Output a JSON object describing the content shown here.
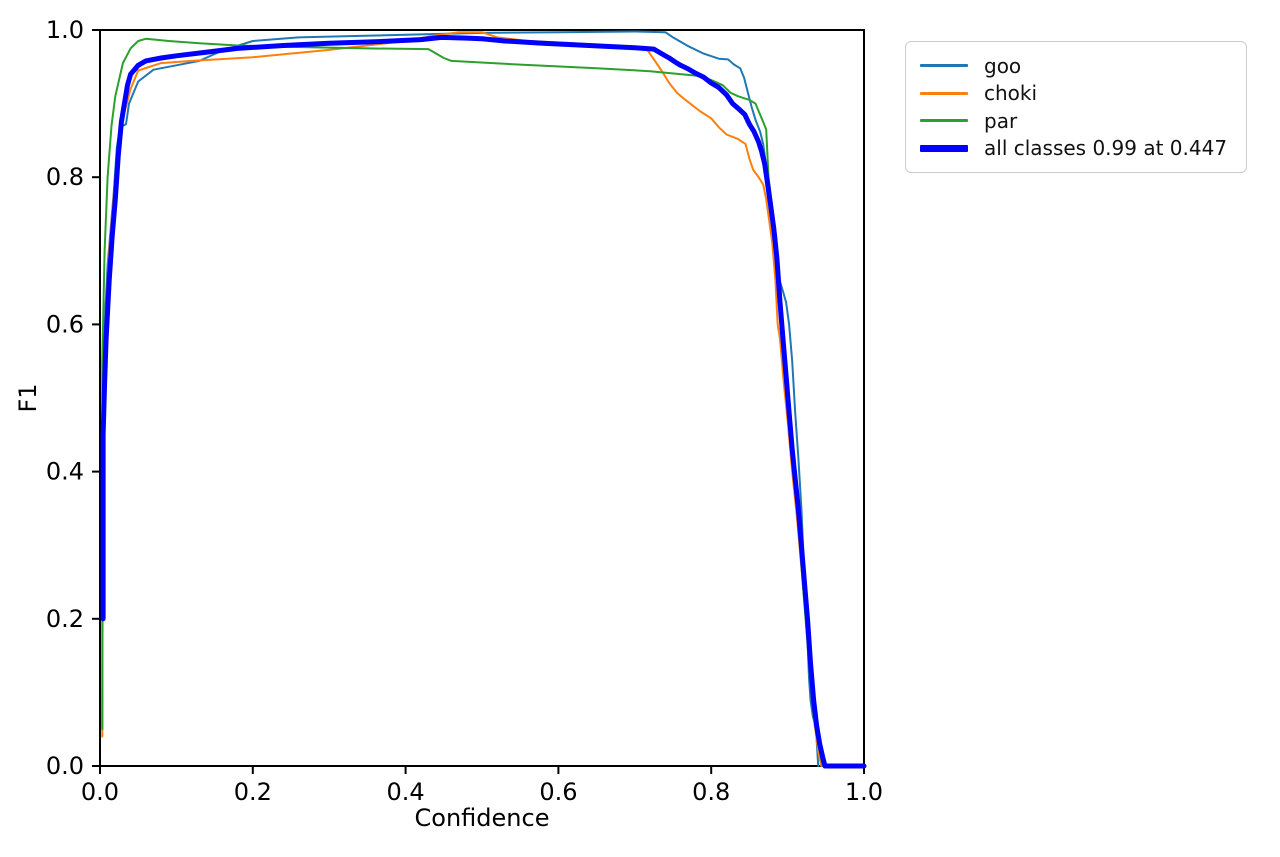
{
  "chart_data": {
    "type": "line",
    "title": "",
    "xlabel": "Confidence",
    "ylabel": "F1",
    "xlim": [
      0.0,
      1.0
    ],
    "ylim": [
      0.0,
      1.0
    ],
    "x_ticks": [
      "0.0",
      "0.2",
      "0.4",
      "0.6",
      "0.8",
      "1.0"
    ],
    "y_ticks": [
      "0.0",
      "0.2",
      "0.4",
      "0.6",
      "0.8",
      "1.0"
    ],
    "grid": false,
    "legend_position": "outside-upper-right",
    "best_f1": "0.99",
    "best_confidence": "0.447",
    "series": [
      {
        "name": "goo",
        "color": "#1f77b4",
        "width": 2,
        "points": [
          [
            0.003,
            0.05
          ],
          [
            0.004,
            0.52
          ],
          [
            0.006,
            0.6
          ],
          [
            0.01,
            0.68
          ],
          [
            0.014,
            0.73
          ],
          [
            0.018,
            0.78
          ],
          [
            0.022,
            0.84
          ],
          [
            0.026,
            0.868
          ],
          [
            0.034,
            0.872
          ],
          [
            0.038,
            0.9
          ],
          [
            0.05,
            0.93
          ],
          [
            0.07,
            0.946
          ],
          [
            0.1,
            0.952
          ],
          [
            0.13,
            0.958
          ],
          [
            0.16,
            0.972
          ],
          [
            0.2,
            0.985
          ],
          [
            0.26,
            0.99
          ],
          [
            0.34,
            0.992
          ],
          [
            0.42,
            0.994
          ],
          [
            0.5,
            0.996
          ],
          [
            0.6,
            0.997
          ],
          [
            0.7,
            0.998
          ],
          [
            0.74,
            0.997
          ],
          [
            0.75,
            0.99
          ],
          [
            0.76,
            0.984
          ],
          [
            0.77,
            0.978
          ],
          [
            0.79,
            0.968
          ],
          [
            0.81,
            0.961
          ],
          [
            0.822,
            0.96
          ],
          [
            0.83,
            0.953
          ],
          [
            0.838,
            0.948
          ],
          [
            0.843,
            0.935
          ],
          [
            0.848,
            0.915
          ],
          [
            0.853,
            0.895
          ],
          [
            0.858,
            0.878
          ],
          [
            0.864,
            0.862
          ],
          [
            0.868,
            0.845
          ],
          [
            0.872,
            0.815
          ],
          [
            0.876,
            0.78
          ],
          [
            0.88,
            0.74
          ],
          [
            0.884,
            0.7
          ],
          [
            0.888,
            0.665
          ],
          [
            0.893,
            0.648
          ],
          [
            0.898,
            0.63
          ],
          [
            0.902,
            0.6
          ],
          [
            0.906,
            0.55
          ],
          [
            0.91,
            0.48
          ],
          [
            0.914,
            0.42
          ],
          [
            0.918,
            0.35
          ],
          [
            0.921,
            0.28
          ],
          [
            0.924,
            0.22
          ],
          [
            0.926,
            0.17
          ],
          [
            0.928,
            0.12
          ],
          [
            0.93,
            0.09
          ],
          [
            0.933,
            0.068
          ],
          [
            0.937,
            0.052
          ],
          [
            0.94,
            0.0
          ]
        ]
      },
      {
        "name": "choki",
        "color": "#ff7f0e",
        "width": 2,
        "points": [
          [
            0.003,
            0.04
          ],
          [
            0.004,
            0.5
          ],
          [
            0.008,
            0.62
          ],
          [
            0.012,
            0.7
          ],
          [
            0.02,
            0.8
          ],
          [
            0.03,
            0.88
          ],
          [
            0.04,
            0.92
          ],
          [
            0.05,
            0.945
          ],
          [
            0.08,
            0.955
          ],
          [
            0.12,
            0.958
          ],
          [
            0.2,
            0.963
          ],
          [
            0.3,
            0.973
          ],
          [
            0.4,
            0.985
          ],
          [
            0.44,
            0.993
          ],
          [
            0.47,
            0.997
          ],
          [
            0.5,
            0.997
          ],
          [
            0.52,
            0.99
          ],
          [
            0.56,
            0.985
          ],
          [
            0.62,
            0.982
          ],
          [
            0.68,
            0.978
          ],
          [
            0.715,
            0.975
          ],
          [
            0.725,
            0.96
          ],
          [
            0.735,
            0.945
          ],
          [
            0.745,
            0.928
          ],
          [
            0.755,
            0.915
          ],
          [
            0.765,
            0.906
          ],
          [
            0.775,
            0.898
          ],
          [
            0.785,
            0.89
          ],
          [
            0.8,
            0.88
          ],
          [
            0.81,
            0.868
          ],
          [
            0.82,
            0.858
          ],
          [
            0.835,
            0.852
          ],
          [
            0.845,
            0.845
          ],
          [
            0.85,
            0.825
          ],
          [
            0.855,
            0.81
          ],
          [
            0.862,
            0.8
          ],
          [
            0.868,
            0.79
          ],
          [
            0.872,
            0.77
          ],
          [
            0.876,
            0.74
          ],
          [
            0.88,
            0.71
          ],
          [
            0.884,
            0.66
          ],
          [
            0.887,
            0.6
          ],
          [
            0.89,
            0.58
          ],
          [
            0.895,
            0.52
          ],
          [
            0.9,
            0.47
          ],
          [
            0.906,
            0.4
          ],
          [
            0.912,
            0.34
          ],
          [
            0.918,
            0.27
          ],
          [
            0.924,
            0.2
          ],
          [
            0.93,
            0.12
          ],
          [
            0.935,
            0.06
          ],
          [
            0.94,
            0.02
          ],
          [
            0.944,
            0.0
          ]
        ]
      },
      {
        "name": "par",
        "color": "#2ca02c",
        "width": 2,
        "points": [
          [
            0.003,
            0.05
          ],
          [
            0.003,
            0.55
          ],
          [
            0.006,
            0.7
          ],
          [
            0.01,
            0.8
          ],
          [
            0.015,
            0.87
          ],
          [
            0.02,
            0.91
          ],
          [
            0.03,
            0.955
          ],
          [
            0.04,
            0.975
          ],
          [
            0.05,
            0.985
          ],
          [
            0.06,
            0.988
          ],
          [
            0.09,
            0.985
          ],
          [
            0.13,
            0.982
          ],
          [
            0.18,
            0.979
          ],
          [
            0.25,
            0.977
          ],
          [
            0.35,
            0.975
          ],
          [
            0.43,
            0.974
          ],
          [
            0.45,
            0.962
          ],
          [
            0.46,
            0.958
          ],
          [
            0.55,
            0.953
          ],
          [
            0.65,
            0.948
          ],
          [
            0.72,
            0.944
          ],
          [
            0.78,
            0.938
          ],
          [
            0.8,
            0.932
          ],
          [
            0.815,
            0.925
          ],
          [
            0.825,
            0.915
          ],
          [
            0.835,
            0.91
          ],
          [
            0.85,
            0.905
          ],
          [
            0.858,
            0.9
          ],
          [
            0.862,
            0.89
          ],
          [
            0.868,
            0.875
          ],
          [
            0.872,
            0.865
          ],
          [
            0.875,
            0.8
          ],
          [
            0.878,
            0.775
          ],
          [
            0.885,
            0.72
          ],
          [
            0.89,
            0.65
          ],
          [
            0.895,
            0.58
          ],
          [
            0.9,
            0.5
          ],
          [
            0.905,
            0.44
          ],
          [
            0.91,
            0.38
          ],
          [
            0.916,
            0.3
          ],
          [
            0.922,
            0.22
          ],
          [
            0.928,
            0.14
          ],
          [
            0.934,
            0.07
          ],
          [
            0.94,
            0.03
          ],
          [
            0.946,
            0.0
          ]
        ]
      },
      {
        "name": "all classes 0.99 at 0.447",
        "color": "#0000ff",
        "width": 5,
        "points": [
          [
            0.004,
            0.2
          ],
          [
            0.004,
            0.45
          ],
          [
            0.006,
            0.52
          ],
          [
            0.008,
            0.58
          ],
          [
            0.012,
            0.66
          ],
          [
            0.016,
            0.72
          ],
          [
            0.02,
            0.77
          ],
          [
            0.024,
            0.83
          ],
          [
            0.028,
            0.875
          ],
          [
            0.032,
            0.9
          ],
          [
            0.036,
            0.925
          ],
          [
            0.04,
            0.94
          ],
          [
            0.05,
            0.952
          ],
          [
            0.06,
            0.958
          ],
          [
            0.08,
            0.962
          ],
          [
            0.1,
            0.965
          ],
          [
            0.14,
            0.97
          ],
          [
            0.18,
            0.975
          ],
          [
            0.24,
            0.979
          ],
          [
            0.3,
            0.982
          ],
          [
            0.36,
            0.984
          ],
          [
            0.42,
            0.987
          ],
          [
            0.447,
            0.99
          ],
          [
            0.48,
            0.989
          ],
          [
            0.5,
            0.988
          ],
          [
            0.53,
            0.985
          ],
          [
            0.58,
            0.982
          ],
          [
            0.64,
            0.979
          ],
          [
            0.7,
            0.976
          ],
          [
            0.725,
            0.974
          ],
          [
            0.735,
            0.968
          ],
          [
            0.745,
            0.962
          ],
          [
            0.755,
            0.955
          ],
          [
            0.76,
            0.952
          ],
          [
            0.77,
            0.947
          ],
          [
            0.78,
            0.941
          ],
          [
            0.79,
            0.936
          ],
          [
            0.8,
            0.928
          ],
          [
            0.81,
            0.922
          ],
          [
            0.82,
            0.912
          ],
          [
            0.828,
            0.9
          ],
          [
            0.836,
            0.893
          ],
          [
            0.844,
            0.885
          ],
          [
            0.85,
            0.872
          ],
          [
            0.856,
            0.862
          ],
          [
            0.862,
            0.848
          ],
          [
            0.866,
            0.835
          ],
          [
            0.87,
            0.818
          ],
          [
            0.874,
            0.79
          ],
          [
            0.878,
            0.76
          ],
          [
            0.882,
            0.73
          ],
          [
            0.886,
            0.69
          ],
          [
            0.89,
            0.63
          ],
          [
            0.894,
            0.58
          ],
          [
            0.898,
            0.53
          ],
          [
            0.902,
            0.48
          ],
          [
            0.906,
            0.43
          ],
          [
            0.91,
            0.39
          ],
          [
            0.914,
            0.35
          ],
          [
            0.918,
            0.3
          ],
          [
            0.922,
            0.25
          ],
          [
            0.926,
            0.2
          ],
          [
            0.93,
            0.14
          ],
          [
            0.934,
            0.09
          ],
          [
            0.938,
            0.055
          ],
          [
            0.942,
            0.03
          ],
          [
            0.946,
            0.012
          ],
          [
            0.949,
            0.0
          ],
          [
            1.0,
            0.0
          ]
        ]
      }
    ]
  }
}
